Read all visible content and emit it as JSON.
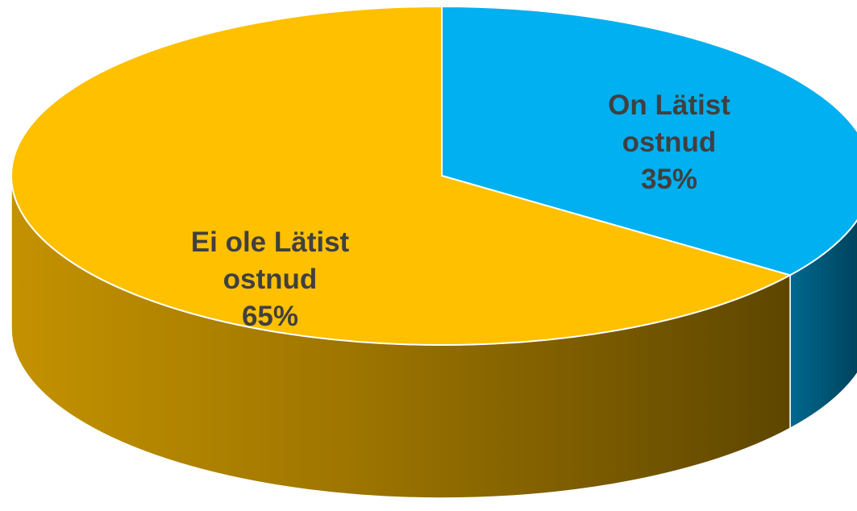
{
  "chart_data": {
    "type": "pie",
    "slices": [
      {
        "label": [
          "On Lätist",
          "ostnud"
        ],
        "value": 35,
        "value_label": "35%",
        "color": "#00b0f0",
        "side_color": "#005a7c"
      },
      {
        "label": [
          "Ei ole Lätist",
          "ostnud"
        ],
        "value": 65,
        "value_label": "65%",
        "color": "#ffc000",
        "side_color": "#9a7400"
      }
    ],
    "start": "12 o'clock",
    "direction": "clockwise",
    "style": "3d",
    "legend": "none"
  }
}
